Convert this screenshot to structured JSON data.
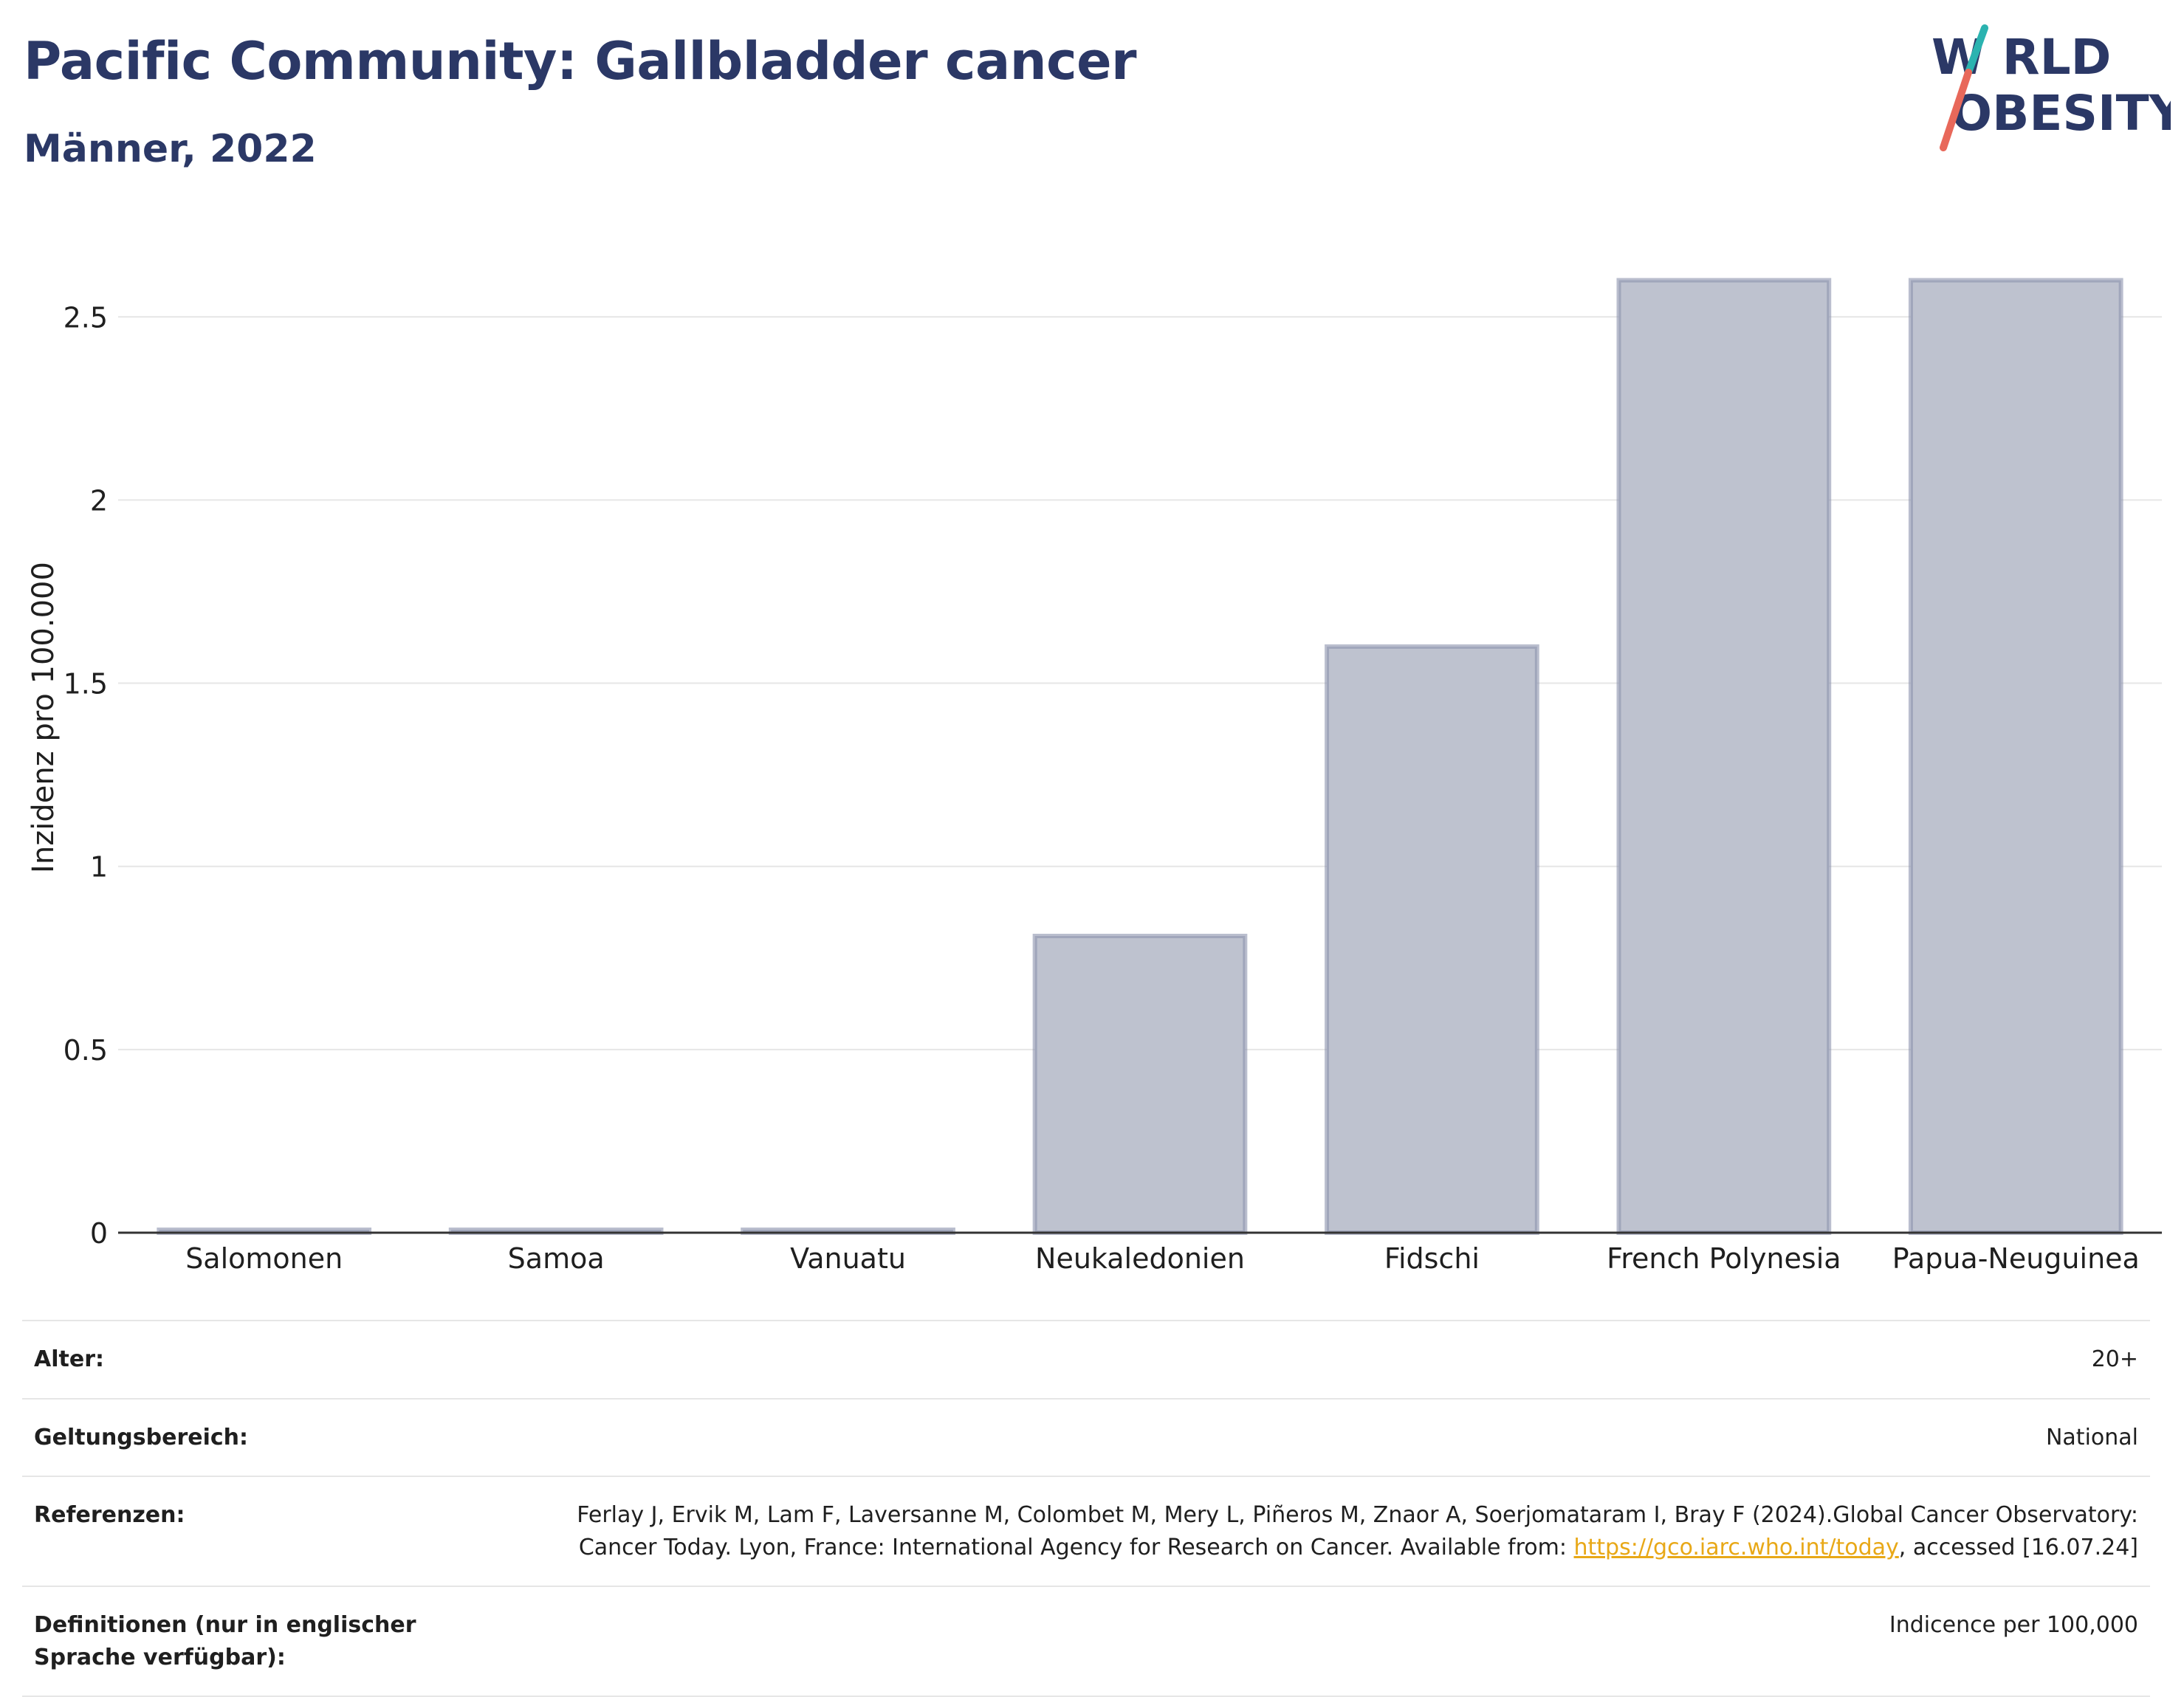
{
  "header": {
    "title": "Pacific Community: Gallbladder cancer",
    "subtitle": "Männer, 2022"
  },
  "logo": {
    "line1": "W  RLD",
    "line2": "OBESITY",
    "colors": {
      "text": "#2b3866",
      "slash_top": "#2bb3b0",
      "slash_bottom": "#e8685a"
    }
  },
  "chart_data": {
    "type": "bar",
    "categories": [
      "Salomonen",
      "Samoa",
      "Vanuatu",
      "Neukaledonien",
      "Fidschi",
      "French Polynesia",
      "Papua-Neuguinea"
    ],
    "values": [
      0,
      0,
      0,
      0.81,
      1.6,
      2.6,
      2.6
    ],
    "ylabel": "Inzidenz pro 100.000",
    "ylim": [
      0,
      2.7
    ],
    "yticks": [
      0,
      0.5,
      1,
      1.5,
      2,
      2.5
    ],
    "ytick_labels": [
      "0",
      "0.5",
      "1",
      "1.5",
      "2",
      "2.5"
    ],
    "grid": true,
    "colors": {
      "bar_fill": "#bec2cf",
      "bar_stroke": "#8c93ad",
      "grid": "#e6e6e6",
      "axis": "#333333"
    }
  },
  "info": {
    "rows": [
      {
        "label": "Alter:",
        "value": "20+"
      },
      {
        "label": "Geltungsbereich:",
        "value": "National"
      },
      {
        "label": "Referenzen:",
        "value_pre": "Ferlay J, Ervik M, Lam F, Laversanne M, Colombet M, Mery L, Piñeros M, Znaor A, Soerjomataram I, Bray F (2024).Global Cancer Observatory: Cancer Today. Lyon, France: International Agency for Research on Cancer. Available from: ",
        "link": "https://gco.iarc.who.int/today",
        "value_post": ", accessed [16.07.24]"
      },
      {
        "label": "Definitionen (nur in englischer Sprache verfügbar):",
        "value": "Indicence per 100,000"
      }
    ]
  }
}
